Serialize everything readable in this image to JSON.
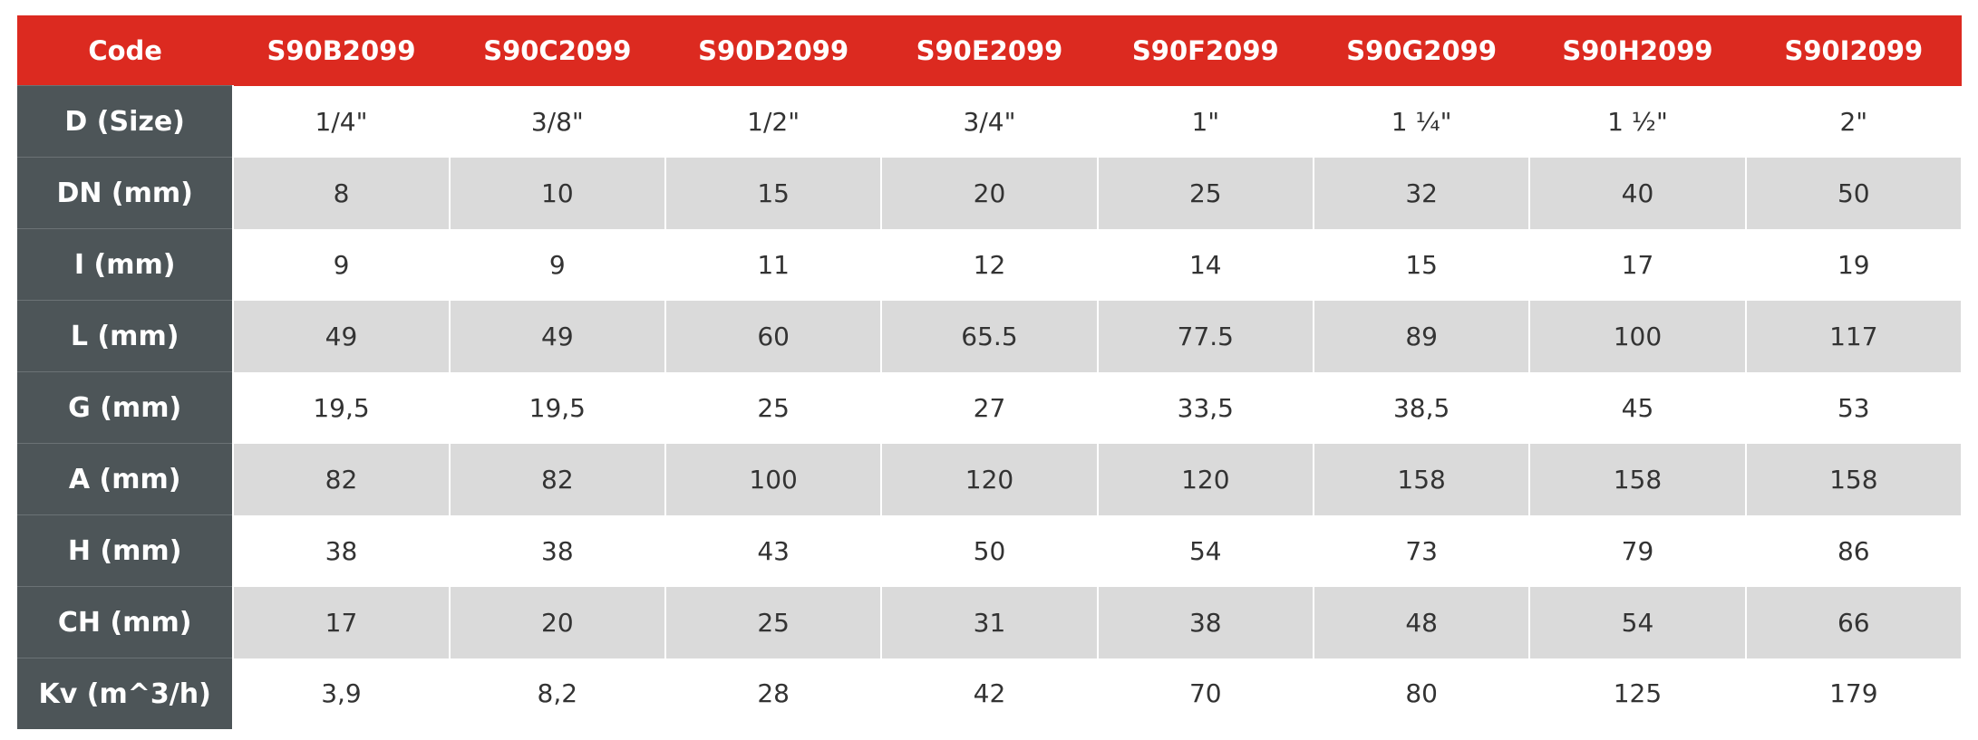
{
  "table": {
    "header": [
      "Code",
      "S90B2099",
      "S90C2099",
      "S90D2099",
      "S90E2099",
      "S90F2099",
      "S90G2099",
      "S90H2099",
      "S90I2099"
    ],
    "rows": [
      [
        "D (Size)",
        "1/4\"",
        "3/8\"",
        "1/2\"",
        "3/4\"",
        "1\"",
        "1 ¼\"",
        "1 ½\"",
        "2\""
      ],
      [
        "DN (mm)",
        "8",
        "10",
        "15",
        "20",
        "25",
        "32",
        "40",
        "50"
      ],
      [
        "I (mm)",
        "9",
        "9",
        "11",
        "12",
        "14",
        "15",
        "17",
        "19"
      ],
      [
        "L (mm)",
        "49",
        "49",
        "60",
        "65.5",
        "77.5",
        "89",
        "100",
        "117"
      ],
      [
        "G (mm)",
        "19,5",
        "19,5",
        "25",
        "27",
        "33,5",
        "38,5",
        "45",
        "53"
      ],
      [
        "A (mm)",
        "82",
        "82",
        "100",
        "120",
        "120",
        "158",
        "158",
        "158"
      ],
      [
        "H (mm)",
        "38",
        "38",
        "43",
        "50",
        "54",
        "73",
        "79",
        "86"
      ],
      [
        "CH (mm)",
        "17",
        "20",
        "25",
        "31",
        "38",
        "48",
        "54",
        "66"
      ],
      [
        "Kv (m^3/h)",
        "3,9",
        "8,2",
        "28",
        "42",
        "70",
        "80",
        "125",
        "179"
      ]
    ]
  }
}
